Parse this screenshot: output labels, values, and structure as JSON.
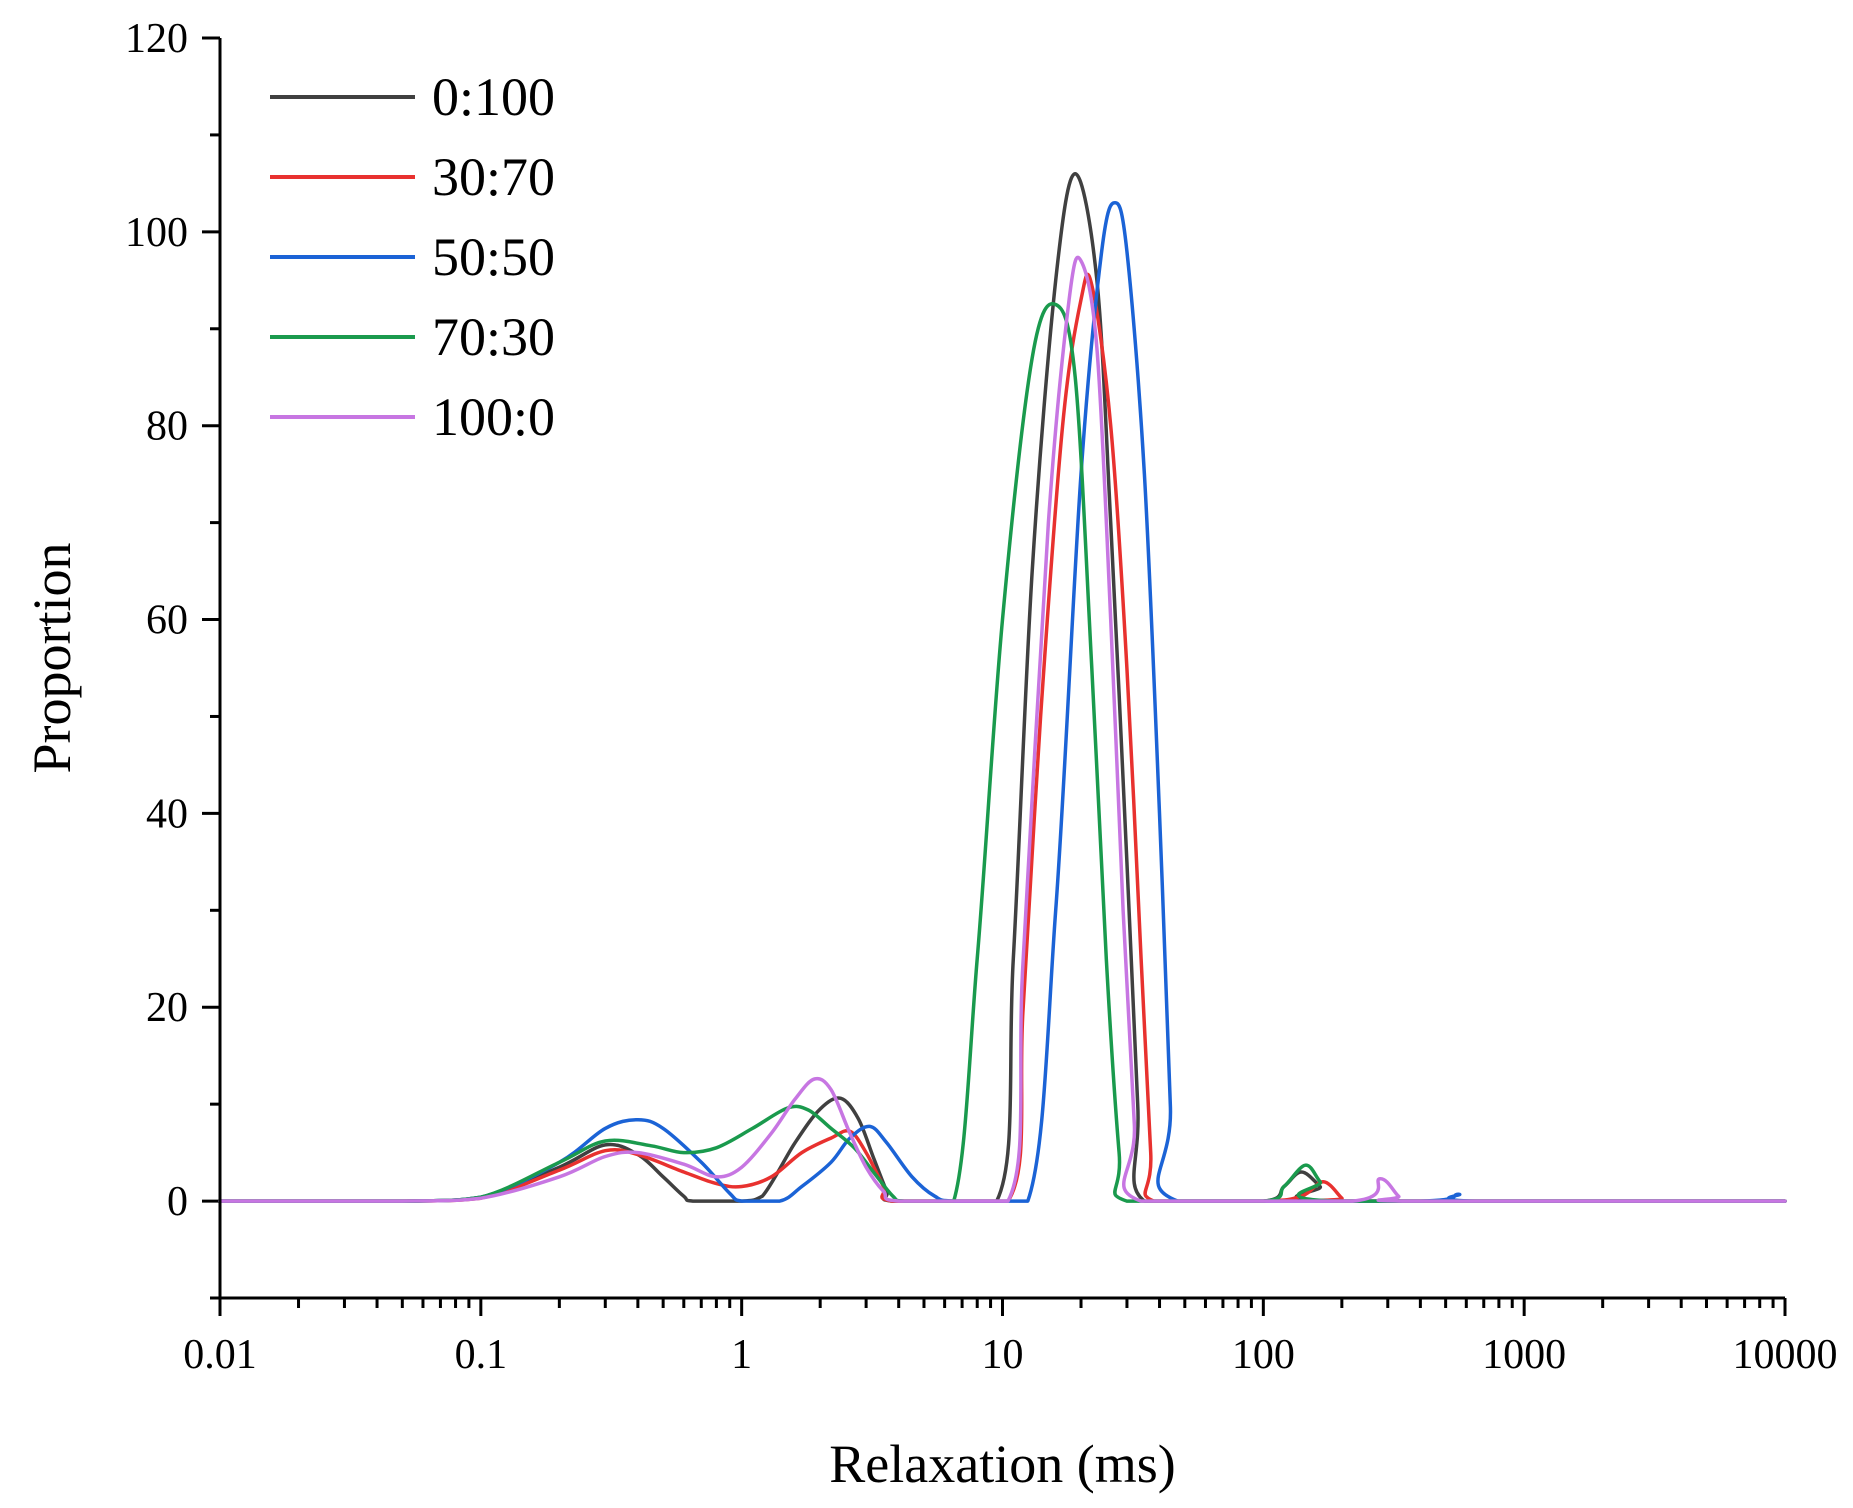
{
  "chart_data": {
    "type": "line",
    "xlabel": "Relaxation (ms)",
    "ylabel": "Proportion",
    "xscale": "log",
    "xlim": [
      0.01,
      10000
    ],
    "ylim": [
      -10,
      120
    ],
    "x_ticks": [
      0.01,
      0.1,
      1,
      10,
      100,
      1000,
      10000
    ],
    "x_tick_labels": [
      "0.01",
      "0.1",
      "1",
      "10",
      "100",
      "1000",
      "10000"
    ],
    "y_ticks": [
      0,
      20,
      40,
      60,
      80,
      100,
      120
    ],
    "y_tick_labels": [
      "0",
      "20",
      "40",
      "60",
      "80",
      "100",
      "120"
    ],
    "legend_position": "top-left",
    "series": [
      {
        "name": "0:100",
        "color": "#404040",
        "points": [
          [
            0.01,
            0
          ],
          [
            0.05,
            0
          ],
          [
            0.1,
            0.4
          ],
          [
            0.2,
            3.5
          ],
          [
            0.3,
            5.8
          ],
          [
            0.4,
            4.8
          ],
          [
            0.5,
            2.5
          ],
          [
            0.6,
            0.5
          ],
          [
            0.65,
            0
          ],
          [
            1.0,
            0
          ],
          [
            1.2,
            0.5
          ],
          [
            1.6,
            6
          ],
          [
            2.0,
            9.5
          ],
          [
            2.4,
            10.6
          ],
          [
            2.8,
            8.5
          ],
          [
            3.2,
            4.5
          ],
          [
            3.6,
            1
          ],
          [
            3.8,
            0
          ],
          [
            9.5,
            0
          ],
          [
            11,
            25
          ],
          [
            13,
            65
          ],
          [
            16,
            95
          ],
          [
            19,
            106
          ],
          [
            23,
            95
          ],
          [
            26,
            70
          ],
          [
            30,
            35
          ],
          [
            33,
            10
          ],
          [
            35,
            0
          ],
          [
            100,
            0
          ],
          [
            120,
            1.5
          ],
          [
            140,
            3
          ],
          [
            165,
            1.5
          ],
          [
            185,
            0
          ],
          [
            10000,
            0
          ]
        ]
      },
      {
        "name": "30:70",
        "color": "#e8312f",
        "points": [
          [
            0.01,
            0
          ],
          [
            0.05,
            0
          ],
          [
            0.1,
            0.3
          ],
          [
            0.2,
            3.2
          ],
          [
            0.3,
            5.2
          ],
          [
            0.4,
            4.8
          ],
          [
            0.6,
            3
          ],
          [
            0.8,
            1.8
          ],
          [
            1.0,
            1.5
          ],
          [
            1.3,
            2.5
          ],
          [
            1.7,
            5
          ],
          [
            2.2,
            6.5
          ],
          [
            2.6,
            7.2
          ],
          [
            3.0,
            5
          ],
          [
            3.5,
            1.5
          ],
          [
            3.8,
            0
          ],
          [
            10.5,
            0
          ],
          [
            12,
            20
          ],
          [
            14,
            50
          ],
          [
            17,
            80
          ],
          [
            20,
            93
          ],
          [
            22,
            94.5
          ],
          [
            26,
            80
          ],
          [
            30,
            55
          ],
          [
            34,
            25
          ],
          [
            37,
            5
          ],
          [
            38,
            0
          ],
          [
            100,
            0
          ],
          [
            140,
            0.5
          ],
          [
            170,
            2
          ],
          [
            200,
            0.3
          ],
          [
            210,
            0
          ],
          [
            10000,
            0
          ]
        ]
      },
      {
        "name": "50:50",
        "color": "#1b63d6",
        "points": [
          [
            0.01,
            0
          ],
          [
            0.05,
            0
          ],
          [
            0.1,
            0.4
          ],
          [
            0.2,
            4
          ],
          [
            0.3,
            7.5
          ],
          [
            0.4,
            8.4
          ],
          [
            0.5,
            7.5
          ],
          [
            0.7,
            4
          ],
          [
            0.9,
            0.8
          ],
          [
            1.0,
            0
          ],
          [
            1.4,
            0
          ],
          [
            1.7,
            1.5
          ],
          [
            2.2,
            4
          ],
          [
            2.6,
            6.5
          ],
          [
            3.1,
            7.7
          ],
          [
            3.6,
            6
          ],
          [
            4.5,
            2.5
          ],
          [
            5.5,
            0.5
          ],
          [
            6.5,
            0
          ],
          [
            12.5,
            0
          ],
          [
            16,
            30
          ],
          [
            20,
            75
          ],
          [
            24,
            98
          ],
          [
            27,
            103
          ],
          [
            30,
            98
          ],
          [
            35,
            75
          ],
          [
            40,
            40
          ],
          [
            44,
            10
          ],
          [
            47,
            0
          ],
          [
            400,
            0
          ],
          [
            560,
            0.7
          ],
          [
            650,
            0
          ],
          [
            10000,
            0
          ]
        ]
      },
      {
        "name": "70:30",
        "color": "#1a9a4d",
        "points": [
          [
            0.01,
            0
          ],
          [
            0.05,
            0
          ],
          [
            0.1,
            0.4
          ],
          [
            0.2,
            4
          ],
          [
            0.3,
            6.2
          ],
          [
            0.45,
            5.7
          ],
          [
            0.6,
            5
          ],
          [
            0.8,
            5.5
          ],
          [
            1.1,
            7.5
          ],
          [
            1.5,
            9.6
          ],
          [
            1.8,
            9.4
          ],
          [
            2.2,
            7.5
          ],
          [
            2.7,
            5.5
          ],
          [
            3.2,
            3
          ],
          [
            3.8,
            0.5
          ],
          [
            4.2,
            0
          ],
          [
            6.5,
            0
          ],
          [
            8,
            25
          ],
          [
            10,
            60
          ],
          [
            13,
            87
          ],
          [
            16,
            92.5
          ],
          [
            19,
            85
          ],
          [
            22,
            55
          ],
          [
            25,
            25
          ],
          [
            28,
            5
          ],
          [
            30,
            0
          ],
          [
            100,
            0
          ],
          [
            120,
            1.5
          ],
          [
            145,
            3.7
          ],
          [
            165,
            2
          ],
          [
            190,
            0
          ],
          [
            10000,
            0
          ]
        ]
      },
      {
        "name": "100:0",
        "color": "#c776e2",
        "points": [
          [
            0.01,
            0
          ],
          [
            0.05,
            0
          ],
          [
            0.1,
            0.3
          ],
          [
            0.2,
            2.5
          ],
          [
            0.3,
            4.6
          ],
          [
            0.4,
            5
          ],
          [
            0.6,
            3.8
          ],
          [
            0.8,
            2.5
          ],
          [
            1.0,
            3.5
          ],
          [
            1.3,
            7
          ],
          [
            1.6,
            10.5
          ],
          [
            1.9,
            12.6
          ],
          [
            2.2,
            11.5
          ],
          [
            2.6,
            7
          ],
          [
            3.0,
            3.5
          ],
          [
            3.5,
            1
          ],
          [
            4.0,
            0
          ],
          [
            10.5,
            0
          ],
          [
            12,
            25
          ],
          [
            15,
            70
          ],
          [
            18,
            93
          ],
          [
            20,
            97
          ],
          [
            23,
            88
          ],
          [
            26,
            60
          ],
          [
            29,
            30
          ],
          [
            32,
            8
          ],
          [
            34,
            0
          ],
          [
            220,
            0
          ],
          [
            280,
            2.3
          ],
          [
            330,
            0.5
          ],
          [
            360,
            0
          ],
          [
            10000,
            0
          ]
        ]
      }
    ]
  }
}
